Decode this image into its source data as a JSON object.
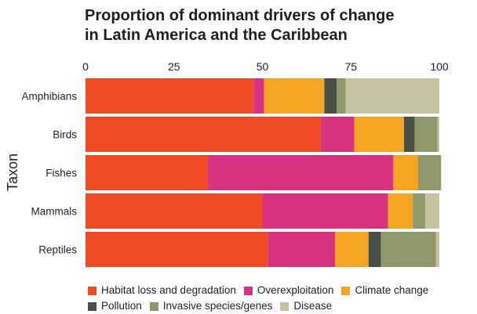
{
  "chart_data": {
    "type": "bar",
    "orientation": "horizontal",
    "stacked": true,
    "title": "Proportion of dominant drivers of change in Latin America and the Caribbean",
    "title_lines": [
      "Proportion of dominant drivers of change",
      "in Latin America and the Caribbean"
    ],
    "xlabel": "",
    "ylabel": "Taxon",
    "xlim": [
      0,
      100
    ],
    "xticks": [
      "0",
      "25",
      "50",
      "75",
      "100"
    ],
    "xaxis_position": "top",
    "grid": false,
    "legend_position": "bottom",
    "categories": [
      "Amphibians",
      "Birds",
      "Fishes",
      "Mammals",
      "Reptiles"
    ],
    "series": [
      {
        "name": "Habitat loss and degradation",
        "color": "#ee4a24",
        "values": [
          47.5,
          66.5,
          34.5,
          50,
          51.5
        ]
      },
      {
        "name": "Overexploitation",
        "color": "#d6327f",
        "values": [
          3,
          9.5,
          52.5,
          35.5,
          19
        ]
      },
      {
        "name": "Climate change",
        "color": "#f4a623",
        "values": [
          17,
          14,
          7,
          7,
          9.5
        ]
      },
      {
        "name": "Pollution",
        "color": "#474f46",
        "values": [
          3.5,
          3,
          0,
          0,
          3.5
        ]
      },
      {
        "name": "Invasive species/genes",
        "color": "#8f9868",
        "values": [
          2.5,
          6.5,
          6.5,
          3.5,
          15.5
        ]
      },
      {
        "name": "Disease",
        "color": "#c6c3a0",
        "values": [
          26.5,
          0.5,
          0,
          4,
          1
        ]
      }
    ]
  }
}
